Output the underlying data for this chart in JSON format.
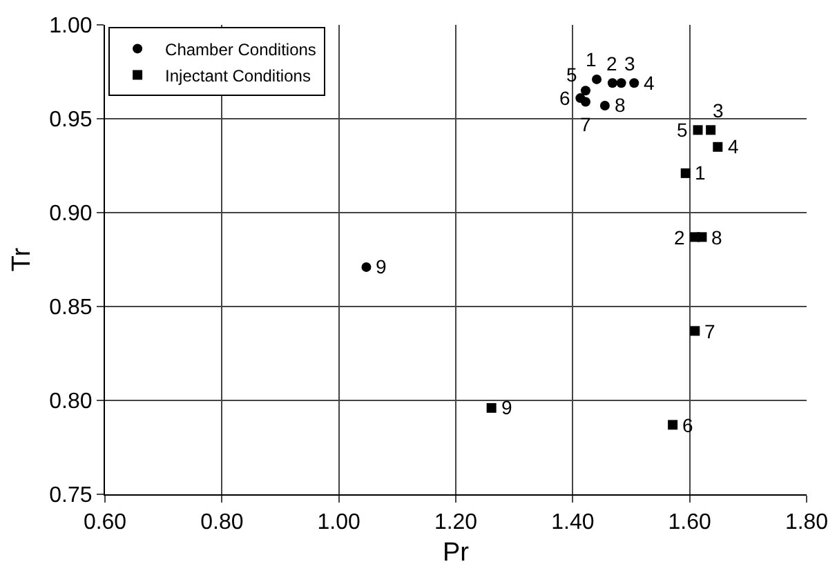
{
  "chart_data": {
    "type": "scatter",
    "xlabel": "Pr",
    "ylabel": "Tr",
    "xlim": [
      0.6,
      1.8
    ],
    "xticks": [
      {
        "value": 0.6,
        "label": "0.60"
      },
      {
        "value": 0.8,
        "label": "0.80"
      },
      {
        "value": 1.0,
        "label": "1.00"
      },
      {
        "value": 1.2,
        "label": "1.20"
      },
      {
        "value": 1.4,
        "label": "1.40"
      },
      {
        "value": 1.6,
        "label": "1.60"
      },
      {
        "value": 1.8,
        "label": "1.80"
      }
    ],
    "ylim": [
      0.75,
      1.0
    ],
    "yticks": [
      {
        "value": 0.75,
        "label": "0.75"
      },
      {
        "value": 0.8,
        "label": "0.80"
      },
      {
        "value": 0.85,
        "label": "0.85"
      },
      {
        "value": 0.9,
        "label": "0.90"
      },
      {
        "value": 0.95,
        "label": "0.95"
      },
      {
        "value": 1.0,
        "label": "1.00"
      }
    ],
    "grid": true,
    "legend": "top left",
    "series": [
      {
        "name": "Chamber Conditions",
        "color": "#000000",
        "marker": "circle",
        "x": [
          1.441,
          1.468,
          1.483,
          1.505,
          1.422,
          1.413,
          1.422,
          1.455,
          1.047
        ],
        "values": [
          0.971,
          0.969,
          0.969,
          0.969,
          0.965,
          0.961,
          0.959,
          0.957,
          0.871
        ]
      },
      {
        "name": "Injectant Conditions",
        "color": "#000000",
        "marker": "square",
        "x": [
          1.593,
          1.609,
          1.636,
          1.648,
          1.614,
          1.571,
          1.609,
          1.621,
          1.261
        ],
        "values": [
          0.921,
          0.887,
          0.944,
          0.935,
          0.944,
          0.787,
          0.837,
          0.887,
          0.796
        ]
      }
    ],
    "annotations": [
      {
        "text": "1",
        "x": 1.441,
        "y": 0.971
      },
      {
        "text": "2",
        "x": 1.468,
        "y": 0.969
      },
      {
        "text": "3",
        "x": 1.483,
        "y": 0.969
      },
      {
        "text": "4",
        "x": 1.505,
        "y": 0.969
      },
      {
        "text": "5",
        "x": 1.422,
        "y": 0.965
      },
      {
        "text": "6",
        "x": 1.413,
        "y": 0.961
      },
      {
        "text": "7",
        "x": 1.422,
        "y": 0.959
      },
      {
        "text": "8",
        "x": 1.455,
        "y": 0.957
      },
      {
        "text": "9",
        "x": 1.047,
        "y": 0.871
      },
      {
        "text": "1",
        "x": 1.593,
        "y": 0.921
      },
      {
        "text": "2",
        "x": 1.609,
        "y": 0.887
      },
      {
        "text": "3",
        "x": 1.636,
        "y": 0.944
      },
      {
        "text": "4",
        "x": 1.648,
        "y": 0.935
      },
      {
        "text": "5",
        "x": 1.614,
        "y": 0.944
      },
      {
        "text": "6",
        "x": 1.571,
        "y": 0.787
      },
      {
        "text": "7",
        "x": 1.609,
        "y": 0.837
      },
      {
        "text": "8",
        "x": 1.621,
        "y": 0.887
      },
      {
        "text": "9",
        "x": 1.261,
        "y": 0.796
      }
    ]
  }
}
